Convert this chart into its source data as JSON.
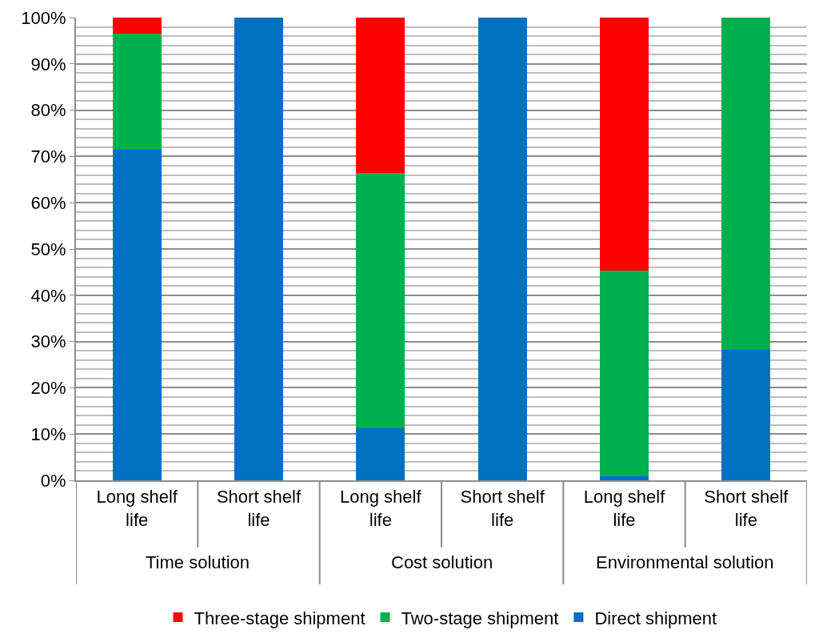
{
  "chart_data": {
    "type": "bar",
    "stacked": true,
    "categories": [
      "Long shelf life",
      "Short shelf life",
      "Long shelf life",
      "Short shelf life",
      "Long shelf life",
      "Short shelf life"
    ],
    "annotations": [
      "Time solution",
      "Cost solution",
      "Environmental solution"
    ],
    "series": [
      {
        "name": "Direct shipment",
        "color": "#0070c0",
        "values": [
          71.4,
          100,
          11.3,
          100,
          0.8,
          28.2
        ]
      },
      {
        "name": "Two-stage shipment",
        "color": "#00b050",
        "values": [
          25.1,
          0,
          55.2,
          0,
          44.5,
          71.8
        ]
      },
      {
        "name": "Three-stage shipment",
        "color": "#ff0000",
        "values": [
          3.5,
          0,
          33.5,
          0,
          54.7,
          0
        ]
      }
    ],
    "ylim": [
      0,
      100
    ],
    "yticks": [
      {
        "value": 0,
        "label": "0%"
      },
      {
        "value": 2,
        "label": null
      },
      {
        "value": 4,
        "label": null
      },
      {
        "value": 6,
        "label": null
      },
      {
        "value": 8,
        "label": null
      },
      {
        "value": 10,
        "label": "10%"
      },
      {
        "value": 12,
        "label": null
      },
      {
        "value": 14,
        "label": null
      },
      {
        "value": 16,
        "label": null
      },
      {
        "value": 18,
        "label": null
      },
      {
        "value": 20,
        "label": "20%"
      },
      {
        "value": 22,
        "label": null
      },
      {
        "value": 24,
        "label": null
      },
      {
        "value": 26,
        "label": null
      },
      {
        "value": 28,
        "label": null
      },
      {
        "value": 30,
        "label": "30%"
      },
      {
        "value": 32,
        "label": null
      },
      {
        "value": 34,
        "label": null
      },
      {
        "value": 36,
        "label": null
      },
      {
        "value": 38,
        "label": null
      },
      {
        "value": 40,
        "label": "40%"
      },
      {
        "value": 42,
        "label": null
      },
      {
        "value": 44,
        "label": null
      },
      {
        "value": 46,
        "label": null
      },
      {
        "value": 48,
        "label": null
      },
      {
        "value": 50,
        "label": "50%"
      },
      {
        "value": 52,
        "label": null
      },
      {
        "value": 54,
        "label": null
      },
      {
        "value": 56,
        "label": null
      },
      {
        "value": 58,
        "label": null
      },
      {
        "value": 60,
        "label": "60%"
      },
      {
        "value": 62,
        "label": null
      },
      {
        "value": 64,
        "label": null
      },
      {
        "value": 66,
        "label": null
      },
      {
        "value": 68,
        "label": null
      },
      {
        "value": 70,
        "label": "70%"
      },
      {
        "value": 72,
        "label": null
      },
      {
        "value": 74,
        "label": null
      },
      {
        "value": 76,
        "label": null
      },
      {
        "value": 78,
        "label": null
      },
      {
        "value": 80,
        "label": "80%"
      },
      {
        "value": 82,
        "label": null
      },
      {
        "value": 84,
        "label": null
      },
      {
        "value": 86,
        "label": null
      },
      {
        "value": 88,
        "label": null
      },
      {
        "value": 90,
        "label": "90%"
      },
      {
        "value": 92,
        "label": null
      },
      {
        "value": 94,
        "label": null
      },
      {
        "value": 96,
        "label": null
      },
      {
        "value": 98,
        "label": null
      },
      {
        "value": 100,
        "label": "100%"
      }
    ],
    "grid": "y",
    "legend": "bottom"
  }
}
